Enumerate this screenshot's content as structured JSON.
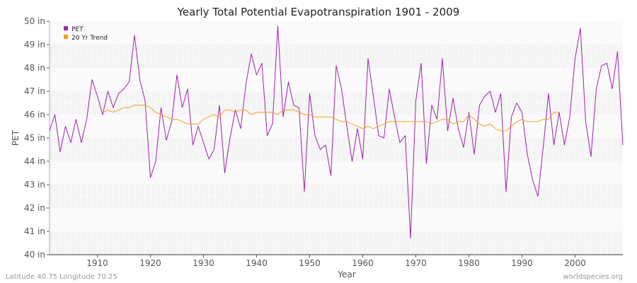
{
  "chart_data": {
    "type": "line",
    "title": "Yearly Total Potential Evapotranspiration 1901 - 2009",
    "xlabel": "Year",
    "ylabel": "PET",
    "xlim": [
      1901,
      2009
    ],
    "ylim": [
      40,
      50
    ],
    "y_unit": "in",
    "x_ticks": [
      1910,
      1920,
      1930,
      1940,
      1950,
      1960,
      1970,
      1980,
      1990,
      2000
    ],
    "y_ticks": [
      40,
      41,
      42,
      43,
      44,
      45,
      46,
      47,
      48,
      49,
      50
    ],
    "grid": true,
    "legend_position": "top-left",
    "colors": {
      "PET": "#a020b0",
      "20 Yr Trend": "#f5a020"
    },
    "series": [
      {
        "name": "PET",
        "x_start": 1901,
        "values": [
          45.3,
          46.0,
          44.4,
          45.5,
          44.8,
          45.8,
          44.8,
          45.8,
          47.5,
          46.8,
          46.0,
          47.0,
          46.3,
          46.9,
          47.1,
          47.4,
          49.4,
          47.5,
          46.6,
          43.3,
          44.0,
          46.3,
          44.9,
          45.7,
          47.7,
          46.3,
          47.1,
          44.7,
          45.5,
          44.8,
          44.1,
          44.5,
          46.4,
          43.5,
          45.0,
          46.2,
          45.4,
          47.3,
          48.6,
          47.7,
          48.2,
          45.1,
          45.6,
          49.8,
          45.9,
          47.4,
          46.4,
          46.3,
          42.7,
          46.9,
          45.1,
          44.5,
          44.7,
          43.4,
          48.1,
          47.1,
          45.5,
          44.0,
          45.4,
          44.1,
          48.4,
          46.8,
          45.1,
          45.0,
          47.1,
          45.9,
          44.8,
          45.1,
          40.7,
          46.6,
          48.2,
          43.9,
          46.4,
          45.8,
          48.4,
          45.3,
          46.7,
          45.4,
          44.6,
          46.1,
          44.3,
          46.4,
          46.8,
          47.0,
          46.1,
          46.9,
          42.7,
          45.9,
          46.5,
          46.1,
          44.3,
          43.2,
          42.5,
          44.6,
          46.9,
          44.7,
          46.1,
          44.7,
          45.9,
          48.4,
          49.7,
          45.7,
          44.2,
          47.1,
          48.1,
          48.2,
          47.1,
          48.7,
          44.7
        ]
      },
      {
        "name": "20 Yr Trend",
        "x_start": 1911,
        "values": [
          46.1,
          46.2,
          46.1,
          46.2,
          46.3,
          46.3,
          46.4,
          46.4,
          46.4,
          46.3,
          46.1,
          46.0,
          45.9,
          45.8,
          45.8,
          45.7,
          45.6,
          45.6,
          45.6,
          45.8,
          45.9,
          46.0,
          45.9,
          46.2,
          46.2,
          46.1,
          46.2,
          46.2,
          46.0,
          46.1,
          46.1,
          46.1,
          46.1,
          46.0,
          46.2,
          46.2,
          46.2,
          46.1,
          46.0,
          46.0,
          45.9,
          45.9,
          45.9,
          45.9,
          45.8,
          45.7,
          45.7,
          45.6,
          45.5,
          45.4,
          45.5,
          45.4,
          45.5,
          45.6,
          45.7,
          45.7,
          45.7,
          45.7,
          45.7,
          45.7,
          45.7,
          45.7,
          45.6,
          45.7,
          45.8,
          45.8,
          45.6,
          45.7,
          45.7,
          46.0,
          45.8,
          45.6,
          45.5,
          45.6,
          45.4,
          45.3,
          45.3,
          45.5,
          45.7,
          45.8,
          45.7,
          45.7,
          45.7,
          45.8,
          45.8,
          46.1,
          46.1
        ]
      }
    ]
  },
  "footer": {
    "location": "Latitude 40.75 Longitude 70.25",
    "source": "worldspecies.org"
  }
}
